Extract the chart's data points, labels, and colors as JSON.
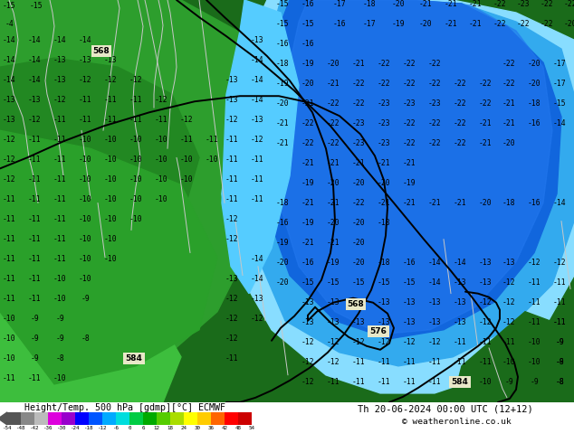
{
  "title_left": "Height/Temp. 500 hPa [gdmp][°C] ECMWF",
  "title_right": "Th 20-06-2024 00:00 UTC (12+12)",
  "copyright": "© weatheronline.co.uk",
  "colorbar_levels": [
    -54,
    -48,
    -42,
    -36,
    -30,
    -24,
    -18,
    -12,
    -6,
    0,
    6,
    12,
    18,
    24,
    30,
    36,
    42,
    48,
    54
  ],
  "colorbar_colors": [
    "#555555",
    "#888888",
    "#bbbbbb",
    "#dd00dd",
    "#9900cc",
    "#0000ff",
    "#0055ff",
    "#00aaff",
    "#00dddd",
    "#00cc44",
    "#00aa00",
    "#55cc00",
    "#aadd00",
    "#ffff00",
    "#ffcc00",
    "#ff6600",
    "#ff0000",
    "#cc0000"
  ],
  "fig_width": 6.34,
  "fig_height": 4.9,
  "dpi": 100
}
